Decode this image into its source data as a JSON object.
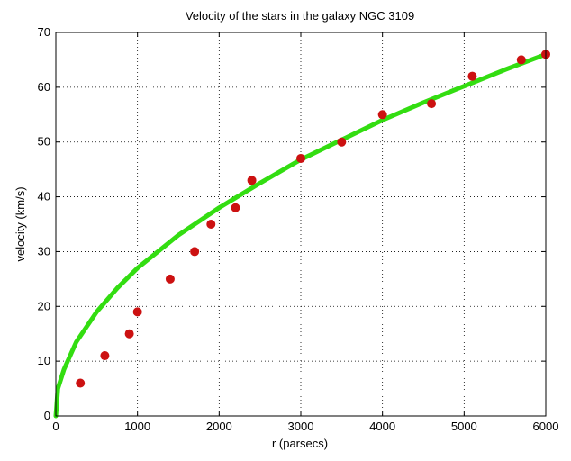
{
  "chart_data": {
    "type": "scatter",
    "title": "Velocity of the stars in the galaxy NGC 3109",
    "xlabel": "r (parsecs)",
    "ylabel": "velocity (km/s)",
    "xlim": [
      0,
      6000
    ],
    "ylim": [
      0,
      70
    ],
    "x_ticks": [
      0,
      1000,
      2000,
      3000,
      4000,
      5000,
      6000
    ],
    "y_ticks": [
      0,
      10,
      20,
      30,
      40,
      50,
      60,
      70
    ],
    "grid": true,
    "grid_style": "dotted",
    "series": [
      {
        "kind": "points",
        "color": "#cc1111",
        "x": [
          300,
          600,
          900,
          1000,
          1400,
          1700,
          1900,
          2200,
          2400,
          3000,
          3500,
          4000,
          4600,
          5100,
          5700,
          6000
        ],
        "y": [
          6,
          11,
          15,
          19,
          25,
          30,
          35,
          38,
          43,
          47,
          50,
          55,
          57,
          62,
          65,
          66
        ]
      },
      {
        "kind": "fit-curve",
        "color": "#33dd11",
        "x": [
          0,
          25,
          100,
          250,
          500,
          750,
          1000,
          1500,
          2000,
          2500,
          3000,
          3500,
          4000,
          4500,
          5000,
          5500,
          6000
        ],
        "y": [
          0,
          5,
          8.5,
          13.5,
          19,
          23.3,
          27,
          33,
          38,
          42.5,
          46.8,
          50.4,
          54,
          57.2,
          60.2,
          63.2,
          66
        ]
      }
    ]
  }
}
